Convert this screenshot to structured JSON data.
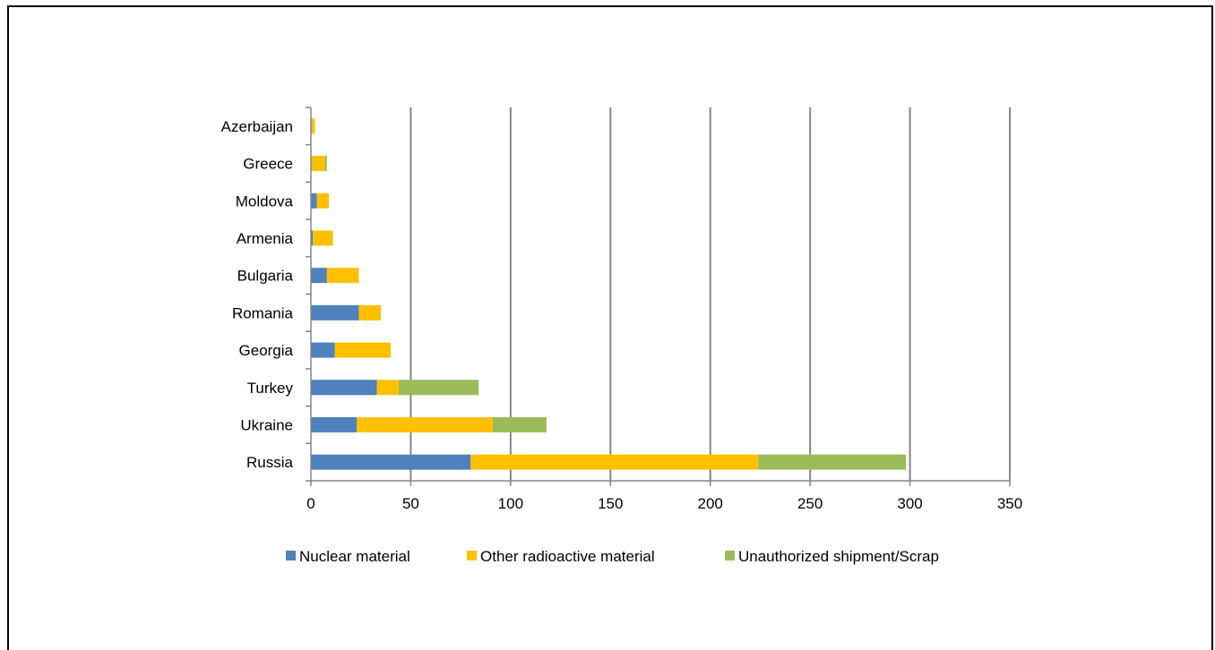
{
  "chart_data": {
    "type": "bar",
    "orientation": "horizontal",
    "stacked": true,
    "categories": [
      "Russia",
      "Ukraine",
      "Turkey",
      "Georgia",
      "Romania",
      "Bulgaria",
      "Armenia",
      "Moldova",
      "Greece",
      "Azerbaijan"
    ],
    "series": [
      {
        "name": "Nuclear material",
        "color": "#4F81BD",
        "values": [
          80,
          23,
          33,
          12,
          24,
          8,
          1,
          3,
          0,
          0
        ]
      },
      {
        "name": "Other radioactive material",
        "color": "#FFC000",
        "values": [
          144,
          68,
          11,
          28,
          11,
          16,
          10,
          6,
          7,
          2
        ]
      },
      {
        "name": "Unauthorized shipment/Scrap",
        "color": "#9BBB59",
        "values": [
          74,
          27,
          40,
          0,
          0,
          0,
          0,
          0,
          1,
          0
        ]
      }
    ],
    "xlim": [
      0,
      350
    ],
    "xticks": [
      0,
      50,
      100,
      150,
      200,
      250,
      300,
      350
    ],
    "grid": "vertical",
    "legend": "bottom",
    "title": "",
    "xlabel": "",
    "ylabel": ""
  }
}
